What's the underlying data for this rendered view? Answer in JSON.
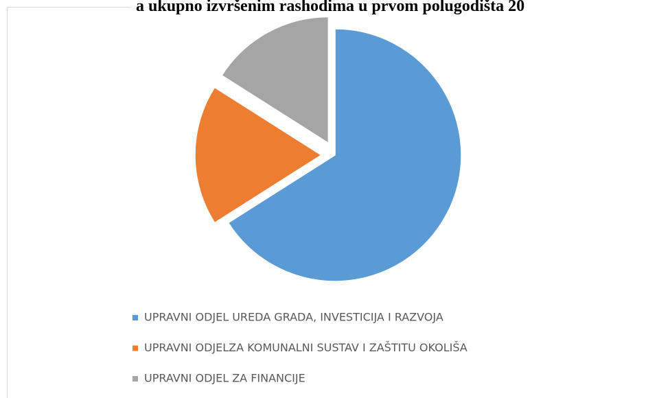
{
  "chart_data": {
    "type": "pie",
    "title": "a ukupno izvršenim rashodima u prvom polugodišta 20",
    "categories": [
      "UPRAVNI ODJEL UREDA GRADA, INVESTICIJA I RAZVOJA",
      "UPRAVNI ODJELZA KOMUNALNI SUSTAV I ZAŠTITU OKOLIŠA",
      "UPRAVNI ODJEL ZA FINANCIJE"
    ],
    "values": [
      66,
      18,
      16
    ],
    "colors": [
      "#5b9bd5",
      "#ed7d31",
      "#a5a5a5"
    ],
    "legend": "bottom"
  }
}
